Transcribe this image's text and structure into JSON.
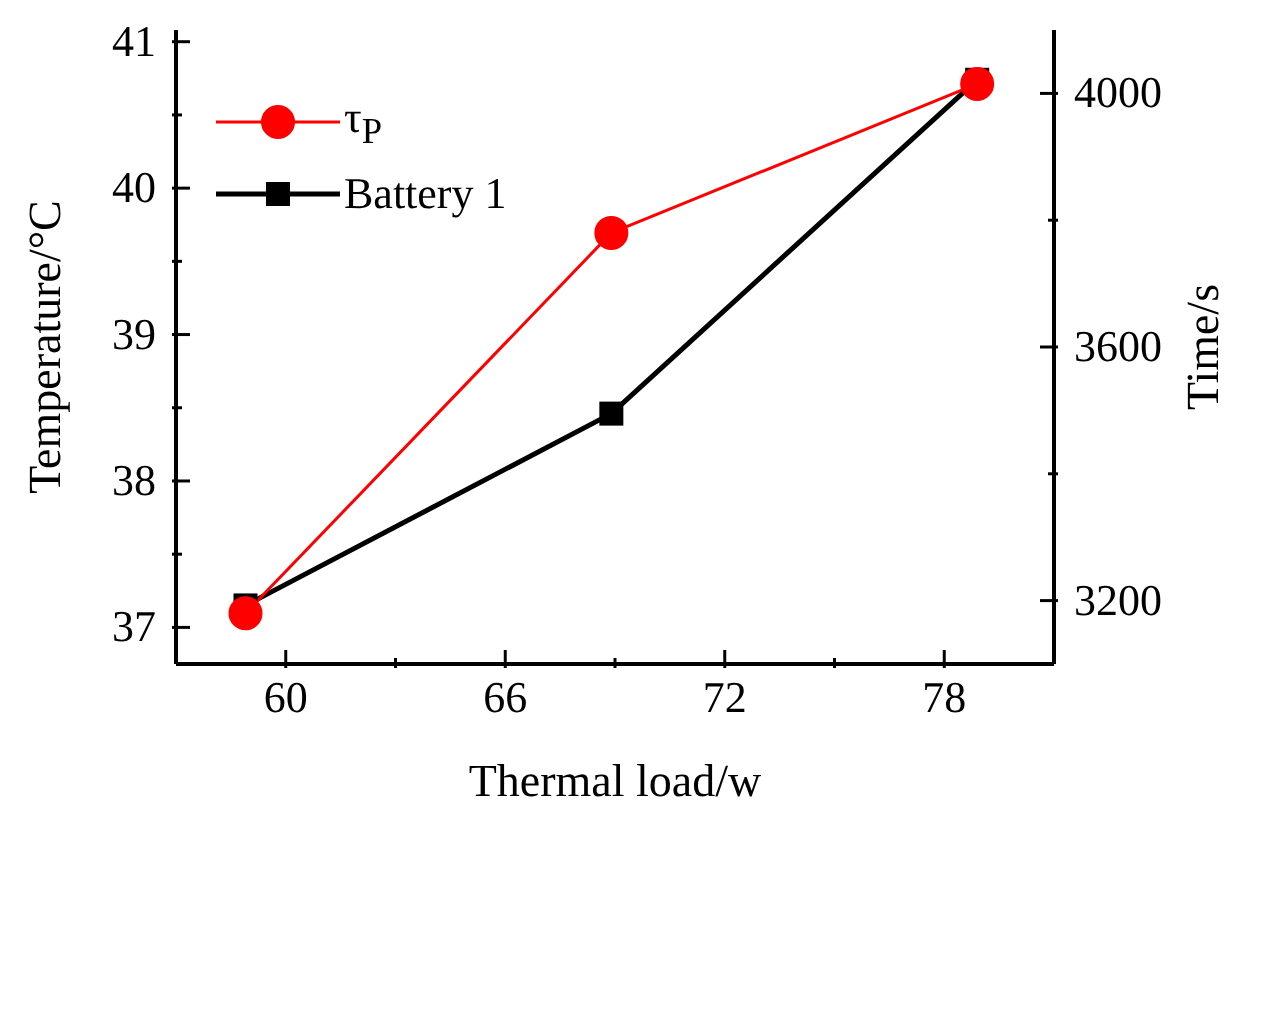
{
  "chart_data": {
    "type": "line",
    "xlabel": "Thermal load/w",
    "ylabel": "Temperature/°C",
    "y2label": "Time/s",
    "x": [
      58.9,
      68.9,
      78.9
    ],
    "series": [
      {
        "name": "τ$_{P}$",
        "color": "#ff0000",
        "marker": "circle",
        "axis": "y2",
        "values": [
          3180,
          3780,
          4015
        ]
      },
      {
        "name": "Battery 1",
        "color": "#000000",
        "marker": "square",
        "values": [
          37.15,
          38.46,
          40.74
        ]
      }
    ],
    "xlim": [
      57,
      81
    ],
    "xticks": [
      60,
      {
        "value": 63,
        "label": null
      },
      66,
      {
        "value": 69,
        "label": null
      },
      72,
      {
        "value": 75,
        "label": null
      },
      78
    ],
    "ylim": [
      36.75,
      41.08
    ],
    "yticks": [
      37,
      {
        "value": 37.5,
        "label": null
      },
      38,
      {
        "value": 38.5,
        "label": null
      },
      39,
      {
        "value": 39.5,
        "label": null
      },
      40,
      {
        "value": 40.5,
        "label": null
      },
      41
    ],
    "y2lim": [
      3100,
      4100
    ],
    "y2ticks": [
      3200,
      {
        "value": 3400,
        "label": null
      },
      3600,
      {
        "value": 3800,
        "label": null
      },
      4000
    ],
    "legend": "top left",
    "grid": false,
    "line_style": "solid"
  }
}
